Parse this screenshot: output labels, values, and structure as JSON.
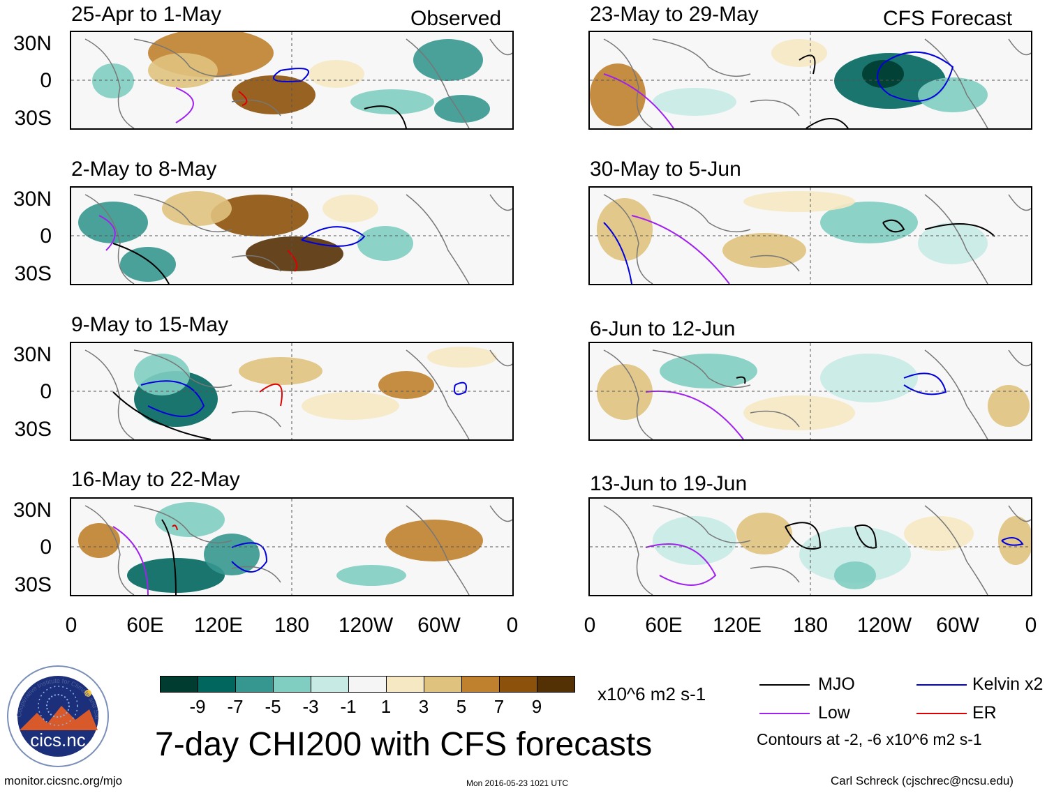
{
  "left_header": "Observed",
  "right_header": "CFS Forecast",
  "panels_left": [
    {
      "title": "25-Apr to 1-May"
    },
    {
      "title": "2-May to 8-May"
    },
    {
      "title": "9-May to 15-May"
    },
    {
      "title": "16-May to 22-May"
    }
  ],
  "panels_right": [
    {
      "title": "23-May to 29-May"
    },
    {
      "title": "30-May to 5-Jun"
    },
    {
      "title": "6-Jun to 12-Jun"
    },
    {
      "title": "13-Jun to 19-Jun"
    }
  ],
  "lat_labels": [
    "30N",
    "0",
    "30S"
  ],
  "lon_labels": [
    "0",
    "60E",
    "120E",
    "180",
    "120W",
    "60W",
    "0"
  ],
  "colorbar": {
    "colors": [
      "#003c30",
      "#01665e",
      "#35978f",
      "#80cdc1",
      "#c7eae5",
      "#f5f5f5",
      "#f6e8c3",
      "#dfc27d",
      "#bf812d",
      "#8c510a",
      "#543005"
    ],
    "ticks": [
      "-9",
      "-7",
      "-5",
      "-3",
      "-1",
      "1",
      "3",
      "5",
      "7",
      "9"
    ],
    "units": "x10^6 m2 s-1"
  },
  "title": "7-day CHI200 with CFS forecasts",
  "legend": {
    "mjo": {
      "label": "MJO",
      "color": "#000000"
    },
    "kelvin": {
      "label": "Kelvin x2",
      "color": "#0000dd"
    },
    "low": {
      "label": "Low",
      "color": "#a020f0"
    },
    "er": {
      "label": "ER",
      "color": "#dd0000"
    },
    "note": "Contours at -2, -6 x10^6 m2 s-1"
  },
  "logo_text": "cics.nc",
  "logo_ring_text": "Cooperative Institute for Climate and Satellites",
  "footer_left": "monitor.cicsnc.org/mjo",
  "timestamp": "Mon 2016-05-23 1021 UTC",
  "footer_right": "Carl Schreck (cjschrec@ncsu.edu)"
}
